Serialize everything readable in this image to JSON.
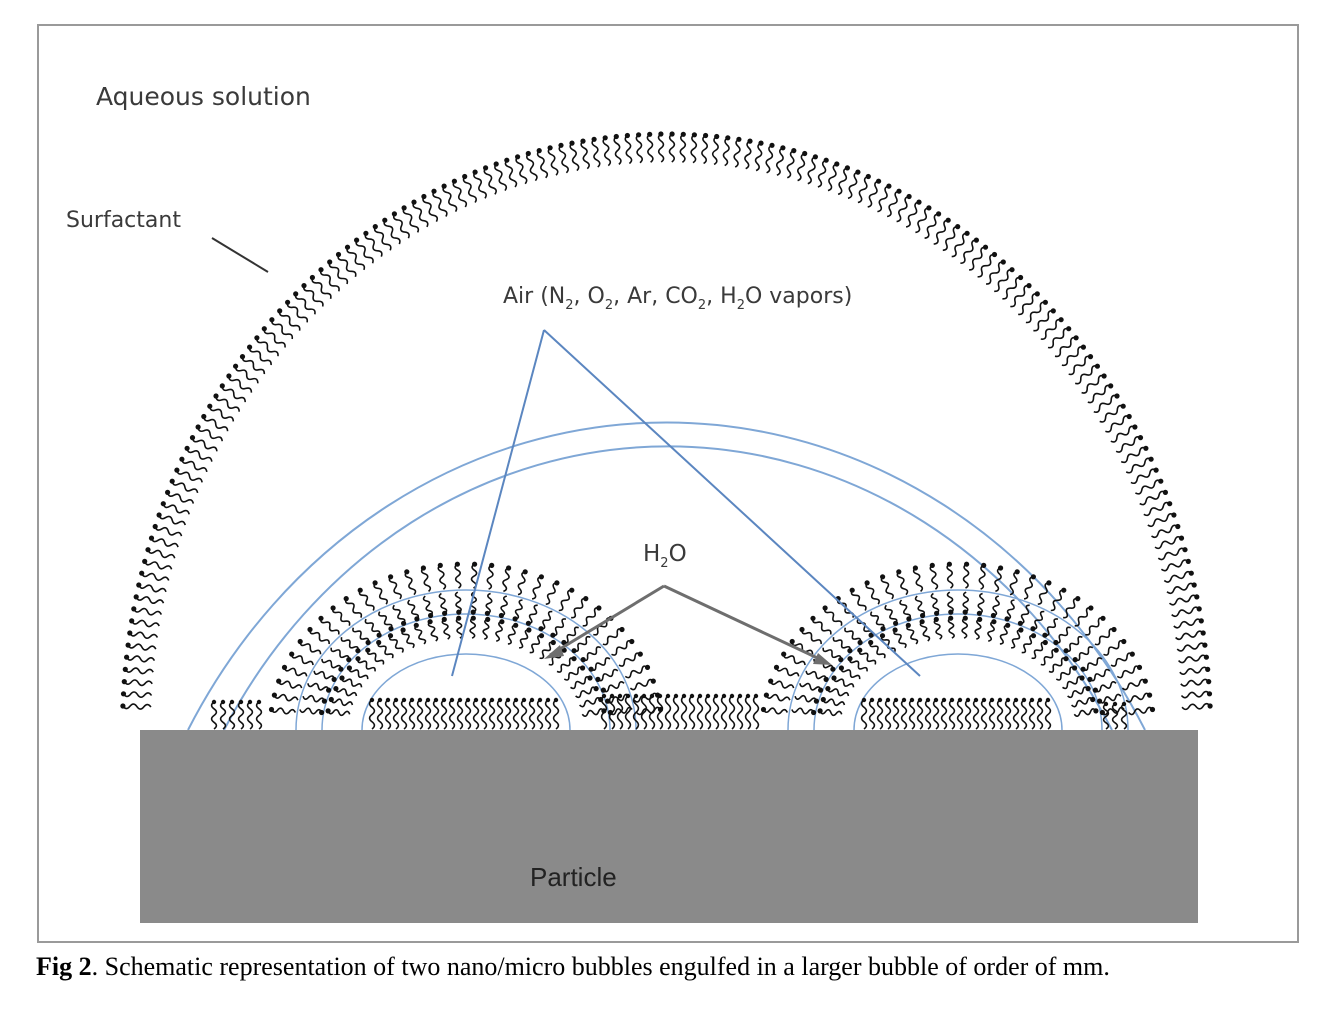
{
  "labels": {
    "aqueous": "Aqueous solution",
    "surfactant": "Surfactant",
    "air_prefix": "Air (N",
    "air_sub1": "2",
    "air_mid1": ", O",
    "air_sub2": "2",
    "air_mid2": ", Ar, CO",
    "air_sub3": "2",
    "air_mid3": ", H",
    "air_sub4": "2",
    "air_suffix": "O vapors)",
    "h2o_h": "H",
    "h2o_sub": "2",
    "h2o_o": "O",
    "particle": "Particle"
  },
  "caption": {
    "label": "Fig 2",
    "text": ". Schematic representation of two nano/micro bubbles engulfed in a larger bubble of order of mm."
  },
  "colors": {
    "membrane": "#7fa7d6",
    "pointer_air": "#5b86c0",
    "pointer_h2o": "#6e6e6e",
    "particle": "#8a8a8a",
    "frame": "#9a9a9a",
    "surfactant": "#111111"
  }
}
